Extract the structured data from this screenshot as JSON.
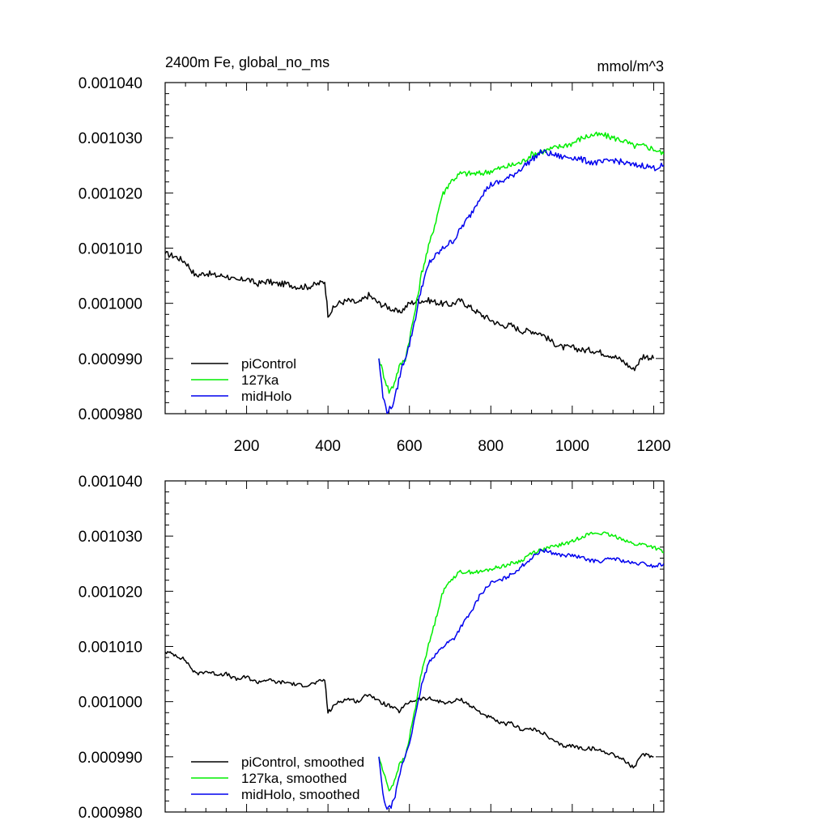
{
  "figure": {
    "title_left": "2400m Fe, global_no_ms",
    "title_right": "mmol/m^3"
  },
  "chart_data": [
    {
      "type": "line",
      "title": "2400m Fe, global_no_ms",
      "units": "mmol/m^3",
      "xlim": [
        0,
        1225
      ],
      "ylim": [
        0.00098,
        0.00104
      ],
      "xticks": [
        200,
        400,
        600,
        800,
        1000,
        1200
      ],
      "xtick_labels": [
        "200",
        "400",
        "600",
        "800",
        "1000",
        "1200"
      ],
      "yticks": [
        0.00098,
        0.00099,
        0.001,
        0.00101,
        0.00102,
        0.00103,
        0.00104
      ],
      "ytick_labels": [
        "0.000980",
        "0.000990",
        "0.001000",
        "0.001010",
        "0.001020",
        "0.001030",
        "0.001040"
      ],
      "legend_position": "bottom-left",
      "series": [
        {
          "name": "piControl",
          "color": "#000000",
          "x": [
            0,
            25,
            50,
            75,
            100,
            125,
            150,
            175,
            200,
            225,
            250,
            275,
            300,
            325,
            350,
            375,
            392,
            400,
            425,
            450,
            475,
            500,
            525,
            550,
            575,
            600,
            625,
            650,
            675,
            700,
            725,
            745,
            775,
            800,
            825,
            850,
            875,
            900,
            925,
            950,
            975,
            1000,
            1025,
            1050,
            1075,
            1100,
            1125,
            1150,
            1175,
            1200
          ],
          "y": [
            0.001009,
            0.0010085,
            0.0010075,
            0.001005,
            0.0010055,
            0.001005,
            0.001005,
            0.001004,
            0.0010045,
            0.0010035,
            0.001004,
            0.0010035,
            0.0010035,
            0.001003,
            0.001003,
            0.0010035,
            0.001004,
            0.000998,
            0.001,
            0.0010005,
            0.001,
            0.0010015,
            0.001,
            0.00099925,
            0.00099825,
            0.001,
            0.0010005,
            0.0010005,
            0.001,
            0.00099975,
            0.0010005,
            0.0009995,
            0.000998,
            0.000997,
            0.000996,
            0.000996,
            0.000995,
            0.000995,
            0.0009945,
            0.000993,
            0.000992,
            0.000992,
            0.0009915,
            0.0009915,
            0.000991,
            0.0009905,
            0.0009895,
            0.000988,
            0.0009905,
            0.00099
          ]
        },
        {
          "name": "127ka",
          "color": "#00ee00",
          "x": [
            525,
            537,
            550,
            560,
            575,
            590,
            600,
            615,
            630,
            650,
            665,
            680,
            700,
            725,
            750,
            775,
            800,
            825,
            850,
            875,
            900,
            925,
            950,
            975,
            1000,
            1025,
            1050,
            1075,
            1100,
            1125,
            1150,
            1175,
            1200,
            1225
          ],
          "y": [
            0.00099,
            0.000987,
            0.000984,
            0.000985,
            0.0009885,
            0.00099,
            0.0009935,
            0.000999,
            0.0010055,
            0.001011,
            0.001015,
            0.0010195,
            0.001022,
            0.0010235,
            0.0010235,
            0.0010235,
            0.001024,
            0.0010245,
            0.001025,
            0.0010255,
            0.001027,
            0.0010275,
            0.001028,
            0.0010285,
            0.001029,
            0.00103,
            0.0010305,
            0.0010305,
            0.00103,
            0.0010295,
            0.0010285,
            0.0010285,
            0.001028,
            0.001027
          ]
        },
        {
          "name": "midHolo",
          "color": "#0000ee",
          "x": [
            525,
            535,
            545,
            555,
            565,
            580,
            600,
            615,
            630,
            650,
            670,
            690,
            710,
            730,
            750,
            775,
            800,
            825,
            850,
            875,
            900,
            925,
            950,
            975,
            1000,
            1025,
            1050,
            1075,
            1100,
            1125,
            1150,
            1175,
            1200,
            1225
          ],
          "y": [
            0.00099,
            0.000983,
            0.0009805,
            0.000981,
            0.000983,
            0.000988,
            0.0009925,
            0.0009975,
            0.001003,
            0.0010075,
            0.001009,
            0.0010105,
            0.0010115,
            0.001014,
            0.001016,
            0.0010195,
            0.0010215,
            0.001022,
            0.001023,
            0.0010245,
            0.001026,
            0.0010275,
            0.001027,
            0.0010265,
            0.0010265,
            0.001026,
            0.0010255,
            0.0010255,
            0.001026,
            0.0010255,
            0.001025,
            0.001025,
            0.0010245,
            0.001025
          ]
        }
      ]
    },
    {
      "type": "line",
      "xlim": [
        0,
        1225
      ],
      "ylim": [
        0.00098,
        0.00104
      ],
      "xticks": [
        200,
        400,
        600,
        800,
        1000,
        1200
      ],
      "yticks": [
        0.00098,
        0.00099,
        0.001,
        0.00101,
        0.00102,
        0.00103,
        0.00104
      ],
      "ytick_labels": [
        "0.000980",
        "0.000990",
        "0.001000",
        "0.001010",
        "0.001020",
        "0.001030",
        "0.001040"
      ],
      "legend_position": "bottom-left",
      "series": [
        {
          "name": "piControl, smoothed",
          "color": "#000000",
          "x": [
            0,
            25,
            50,
            75,
            100,
            125,
            150,
            175,
            200,
            225,
            250,
            275,
            300,
            325,
            350,
            375,
            392,
            400,
            425,
            450,
            475,
            500,
            525,
            550,
            575,
            600,
            625,
            650,
            675,
            700,
            725,
            745,
            775,
            800,
            825,
            850,
            875,
            900,
            925,
            950,
            975,
            1000,
            1025,
            1050,
            1075,
            1100,
            1125,
            1150,
            1175,
            1200
          ],
          "y": [
            0.001009,
            0.0010085,
            0.0010075,
            0.001005,
            0.0010055,
            0.001005,
            0.001005,
            0.001004,
            0.0010045,
            0.0010035,
            0.001004,
            0.0010035,
            0.0010035,
            0.001003,
            0.001003,
            0.0010035,
            0.001004,
            0.000998,
            0.001,
            0.0010005,
            0.001,
            0.0010015,
            0.001,
            0.00099925,
            0.00099825,
            0.001,
            0.0010005,
            0.0010005,
            0.001,
            0.00099975,
            0.0010005,
            0.0009995,
            0.000998,
            0.000997,
            0.000996,
            0.000996,
            0.000995,
            0.000995,
            0.0009945,
            0.000993,
            0.000992,
            0.000992,
            0.0009915,
            0.0009915,
            0.000991,
            0.0009905,
            0.0009895,
            0.000988,
            0.0009905,
            0.00099
          ]
        },
        {
          "name": "127ka, smoothed",
          "color": "#00ee00",
          "x": [
            525,
            537,
            550,
            560,
            575,
            590,
            600,
            615,
            630,
            650,
            665,
            680,
            700,
            725,
            750,
            775,
            800,
            825,
            850,
            875,
            900,
            925,
            950,
            975,
            1000,
            1025,
            1050,
            1075,
            1100,
            1125,
            1150,
            1175,
            1200,
            1225
          ],
          "y": [
            0.00099,
            0.000987,
            0.000984,
            0.000985,
            0.0009885,
            0.00099,
            0.0009935,
            0.000999,
            0.0010055,
            0.001011,
            0.001015,
            0.0010195,
            0.001022,
            0.0010235,
            0.0010235,
            0.0010235,
            0.001024,
            0.0010245,
            0.001025,
            0.0010255,
            0.001027,
            0.0010275,
            0.001028,
            0.0010285,
            0.001029,
            0.00103,
            0.0010305,
            0.0010305,
            0.00103,
            0.0010295,
            0.0010285,
            0.0010285,
            0.001028,
            0.001027
          ]
        },
        {
          "name": "midHolo, smoothed",
          "color": "#0000ee",
          "x": [
            525,
            535,
            545,
            555,
            565,
            580,
            600,
            615,
            630,
            650,
            670,
            690,
            710,
            730,
            750,
            775,
            800,
            825,
            850,
            875,
            900,
            925,
            950,
            975,
            1000,
            1025,
            1050,
            1075,
            1100,
            1125,
            1150,
            1175,
            1200,
            1225
          ],
          "y": [
            0.00099,
            0.000983,
            0.0009805,
            0.000981,
            0.000983,
            0.000988,
            0.0009925,
            0.0009975,
            0.001003,
            0.0010075,
            0.001009,
            0.0010105,
            0.0010115,
            0.001014,
            0.001016,
            0.0010195,
            0.0010215,
            0.001022,
            0.001023,
            0.0010245,
            0.001026,
            0.0010275,
            0.001027,
            0.0010265,
            0.0010265,
            0.001026,
            0.0010255,
            0.0010255,
            0.001026,
            0.0010255,
            0.001025,
            0.001025,
            0.0010245,
            0.001025
          ]
        }
      ]
    }
  ]
}
